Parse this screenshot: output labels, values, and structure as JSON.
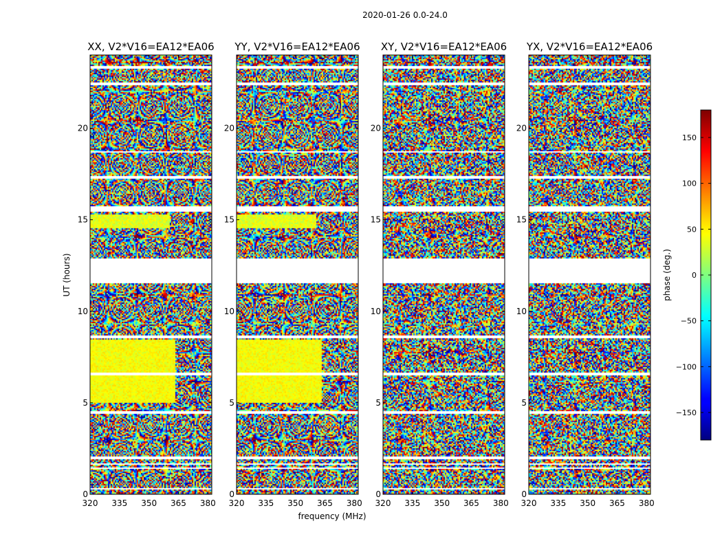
{
  "chart_data": {
    "type": "heatmap",
    "title": "2020-01-26 0.0-24.0",
    "xlabel": "frequency (MHz)",
    "ylabel": "UT (hours)",
    "xlim": [
      320,
      382
    ],
    "ylim": [
      0,
      24
    ],
    "x_ticks": [
      320,
      335,
      350,
      365,
      380
    ],
    "y_ticks": [
      0,
      5,
      10,
      15,
      20
    ],
    "panels": [
      {
        "title": "XX, V2*V16=EA12*EA06",
        "pol": "XX"
      },
      {
        "title": "YY, V2*V16=EA12*EA06",
        "pol": "YY"
      },
      {
        "title": "XY, V2*V16=EA12*EA06",
        "pol": "XY"
      },
      {
        "title": "YX, V2*V16=EA12*EA06",
        "pol": "YX"
      }
    ],
    "colorbar": {
      "label": "phase (deg.)",
      "range": [
        -180,
        180
      ],
      "ticks": [
        -150,
        -100,
        -50,
        0,
        50,
        100,
        150
      ],
      "colormap": "jet"
    },
    "flagged_ut_ranges": [
      [
        0.3,
        0.35
      ],
      [
        1.4,
        1.5
      ],
      [
        1.65,
        1.72
      ],
      [
        1.95,
        2.1
      ],
      [
        4.45,
        4.6
      ],
      [
        6.55,
        6.72
      ],
      [
        8.6,
        8.75
      ],
      [
        11.6,
        12.95
      ],
      [
        15.45,
        15.8
      ],
      [
        17.3,
        17.4
      ],
      [
        18.7,
        18.8
      ],
      [
        22.4,
        22.5
      ],
      [
        23.3,
        23.45
      ]
    ]
  }
}
